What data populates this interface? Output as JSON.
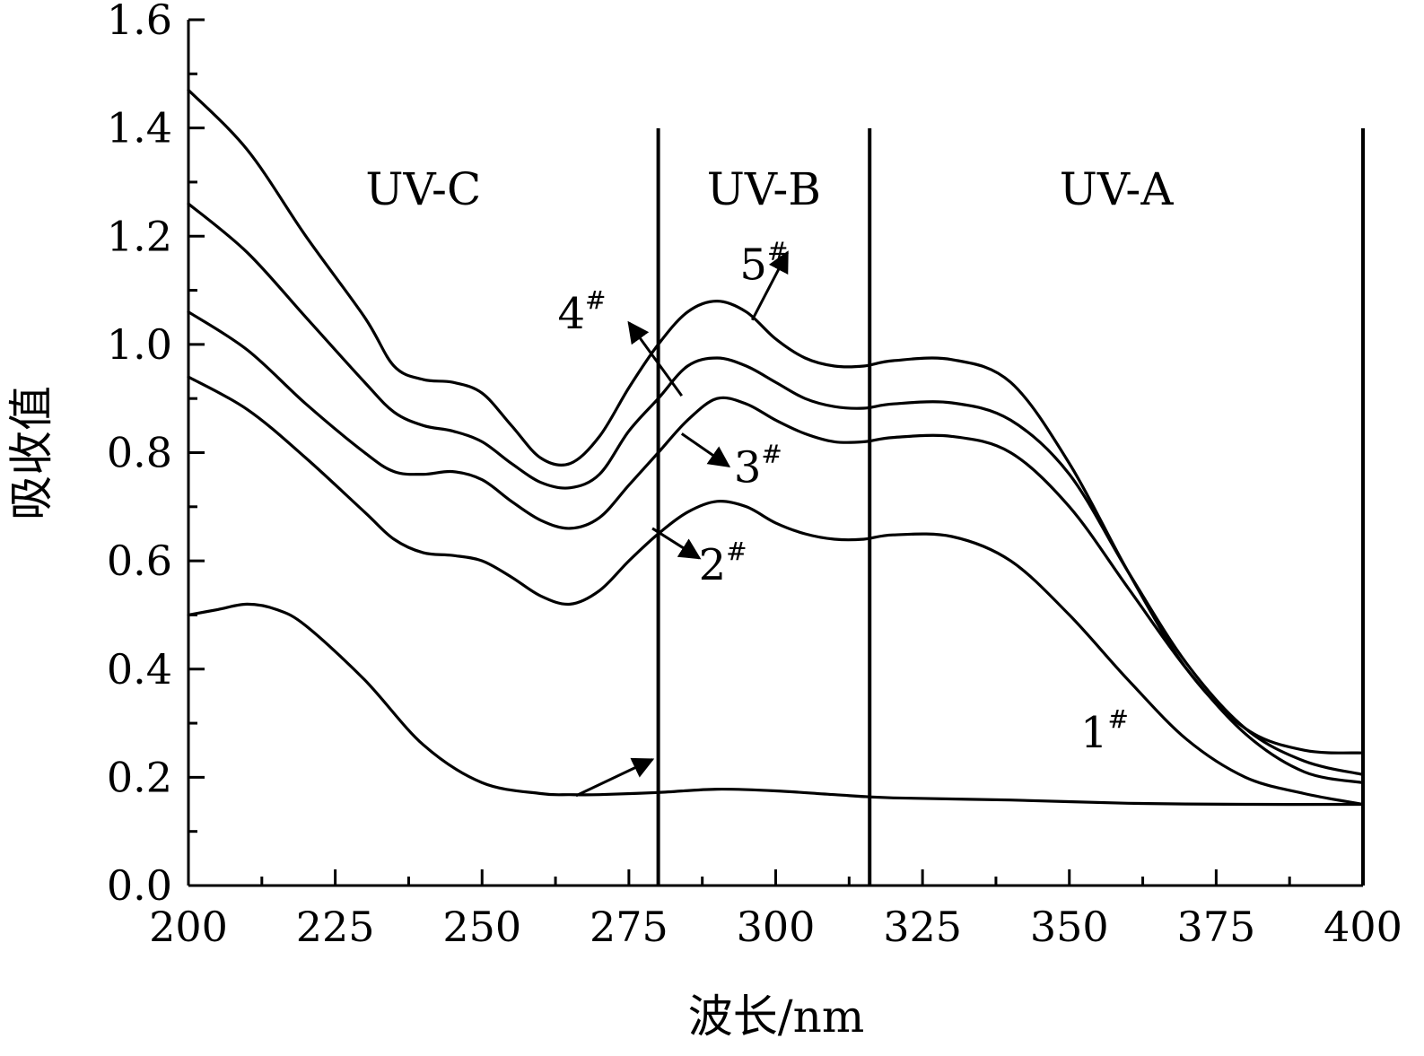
{
  "chart_data": {
    "type": "line",
    "title": "",
    "xlabel": "波长/nm",
    "ylabel": "吸收值",
    "xlim": [
      200,
      400
    ],
    "ylim": [
      0.0,
      1.6
    ],
    "x_ticks": [
      200,
      225,
      250,
      275,
      300,
      325,
      350,
      375,
      400
    ],
    "x_tick_labels": [
      "200",
      "225",
      "250",
      "275",
      "300",
      "325",
      "350",
      "375",
      "400"
    ],
    "y_ticks": [
      0.0,
      0.2,
      0.4,
      0.6,
      0.8,
      1.0,
      1.2,
      1.4,
      1.6
    ],
    "y_tick_labels": [
      "0.0",
      "0.2",
      "0.4",
      "0.6",
      "0.8",
      "1.0",
      "1.2",
      "1.4",
      "1.6"
    ],
    "grid": false,
    "regions": [
      {
        "label": "UV-C",
        "x_start": 200,
        "x_end": 280
      },
      {
        "label": "UV-B",
        "x_start": 280,
        "x_end": 316
      },
      {
        "label": "UV-A",
        "x_start": 316,
        "x_end": 400
      }
    ],
    "region_boundaries": [
      280,
      316,
      400
    ],
    "series": [
      {
        "name": "1#",
        "label_main": "1",
        "label_sup": "#",
        "x": [
          200,
          205,
          210,
          215,
          220,
          230,
          240,
          250,
          260,
          265,
          270,
          280,
          290,
          300,
          310,
          320,
          340,
          360,
          380,
          400
        ],
        "values": [
          0.5,
          0.51,
          0.52,
          0.51,
          0.48,
          0.38,
          0.26,
          0.19,
          0.17,
          0.168,
          0.168,
          0.172,
          0.178,
          0.175,
          0.168,
          0.162,
          0.158,
          0.152,
          0.15,
          0.15
        ]
      },
      {
        "name": "2#",
        "label_main": "2",
        "label_sup": "#",
        "x": [
          200,
          210,
          220,
          230,
          235,
          240,
          245,
          250,
          255,
          260,
          265,
          270,
          275,
          280,
          285,
          290,
          295,
          300,
          305,
          310,
          315,
          320,
          330,
          340,
          350,
          360,
          370,
          380,
          390,
          400
        ],
        "values": [
          0.94,
          0.88,
          0.79,
          0.69,
          0.64,
          0.615,
          0.61,
          0.6,
          0.57,
          0.535,
          0.52,
          0.545,
          0.6,
          0.65,
          0.69,
          0.71,
          0.7,
          0.67,
          0.65,
          0.64,
          0.64,
          0.648,
          0.645,
          0.6,
          0.5,
          0.38,
          0.27,
          0.2,
          0.17,
          0.15
        ]
      },
      {
        "name": "3#",
        "label_main": "3",
        "label_sup": "#",
        "x": [
          200,
          210,
          220,
          230,
          235,
          240,
          245,
          250,
          255,
          260,
          265,
          270,
          275,
          280,
          285,
          290,
          295,
          300,
          305,
          310,
          315,
          320,
          330,
          340,
          350,
          360,
          370,
          380,
          390,
          400
        ],
        "values": [
          1.06,
          0.99,
          0.89,
          0.8,
          0.765,
          0.76,
          0.765,
          0.75,
          0.71,
          0.675,
          0.66,
          0.68,
          0.74,
          0.8,
          0.86,
          0.9,
          0.89,
          0.86,
          0.835,
          0.82,
          0.82,
          0.828,
          0.83,
          0.8,
          0.7,
          0.55,
          0.4,
          0.28,
          0.21,
          0.19
        ]
      },
      {
        "name": "4#",
        "label_main": "4",
        "label_sup": "#",
        "x": [
          200,
          210,
          220,
          230,
          235,
          240,
          245,
          250,
          255,
          260,
          265,
          270,
          275,
          280,
          285,
          290,
          295,
          300,
          305,
          310,
          315,
          320,
          330,
          340,
          350,
          360,
          370,
          380,
          390,
          400
        ],
        "values": [
          1.26,
          1.17,
          1.05,
          0.93,
          0.875,
          0.85,
          0.84,
          0.82,
          0.78,
          0.745,
          0.735,
          0.76,
          0.84,
          0.9,
          0.96,
          0.975,
          0.96,
          0.93,
          0.9,
          0.885,
          0.882,
          0.89,
          0.892,
          0.86,
          0.76,
          0.58,
          0.41,
          0.29,
          0.23,
          0.205
        ]
      },
      {
        "name": "5#",
        "label_main": "5",
        "label_sup": "#",
        "x": [
          200,
          210,
          220,
          230,
          235,
          240,
          245,
          250,
          255,
          260,
          265,
          270,
          275,
          280,
          285,
          290,
          295,
          300,
          305,
          310,
          315,
          320,
          330,
          340,
          350,
          360,
          370,
          380,
          390,
          400
        ],
        "values": [
          1.47,
          1.36,
          1.2,
          1.05,
          0.96,
          0.935,
          0.93,
          0.91,
          0.85,
          0.79,
          0.78,
          0.83,
          0.92,
          1.0,
          1.06,
          1.08,
          1.06,
          1.01,
          0.975,
          0.96,
          0.96,
          0.97,
          0.972,
          0.93,
          0.78,
          0.58,
          0.4,
          0.29,
          0.25,
          0.245
        ]
      }
    ],
    "annotations": [
      {
        "series": "1#",
        "main": "1",
        "sup": "#",
        "text_x": 356,
        "text_y": 0.255,
        "arrow_from_x": 266,
        "arrow_from_y": 0.166,
        "arrow_to_x": 279,
        "arrow_to_y": 0.233
      },
      {
        "series": "2#",
        "main": "2",
        "sup": "#",
        "text_x": 291,
        "text_y": 0.565,
        "arrow_from_x": 279,
        "arrow_from_y": 0.66,
        "arrow_to_x": 287,
        "arrow_to_y": 0.605
      },
      {
        "series": "3#",
        "main": "3",
        "sup": "#",
        "text_x": 297,
        "text_y": 0.745,
        "arrow_from_x": 284,
        "arrow_from_y": 0.835,
        "arrow_to_x": 292,
        "arrow_to_y": 0.775
      },
      {
        "series": "4#",
        "main": "4",
        "sup": "#",
        "text_x": 267,
        "text_y": 1.03,
        "arrow_from_x": 284,
        "arrow_from_y": 0.905,
        "arrow_to_x": 275,
        "arrow_to_y": 1.04
      },
      {
        "series": "5#",
        "main": "5",
        "sup": "#",
        "text_x": 298,
        "text_y": 1.12,
        "arrow_from_x": 296,
        "arrow_from_y": 1.045,
        "arrow_to_x": 302,
        "arrow_to_y": 1.17
      }
    ]
  }
}
